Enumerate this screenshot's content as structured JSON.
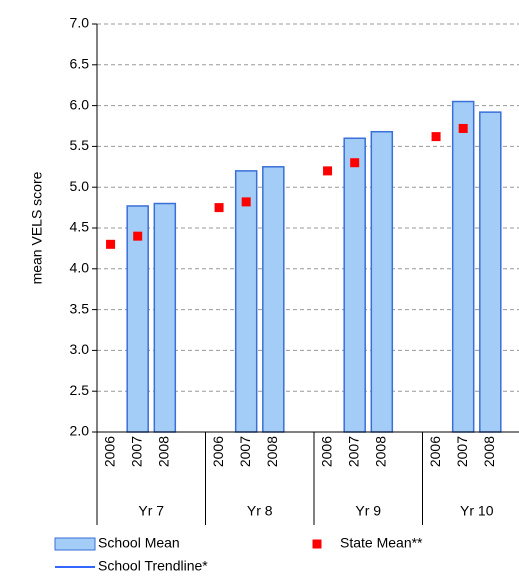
{
  "chart_data": {
    "type": "bar",
    "y_label": "mean VELS score",
    "categories": [
      "2006",
      "2007",
      "2008",
      "2006",
      "2007",
      "2008",
      "2006",
      "2007",
      "2008",
      "2006",
      "2007",
      "2008"
    ],
    "groups": [
      "Yr 7",
      "Yr 8",
      "Yr 9",
      "Yr 10"
    ],
    "series": [
      {
        "name": "School Mean",
        "kind": "bar",
        "color": "#a3cdf7",
        "edge": "#3a6fd8",
        "values": [
          null,
          4.77,
          4.8,
          null,
          5.2,
          5.25,
          null,
          5.6,
          5.68,
          null,
          6.05,
          5.92
        ]
      },
      {
        "name": "State Mean**",
        "kind": "marker",
        "color": "#ff0000",
        "values": [
          4.3,
          4.4,
          null,
          4.75,
          4.82,
          null,
          5.2,
          5.3,
          null,
          5.62,
          5.72,
          null
        ]
      },
      {
        "name": "School Trendline*",
        "kind": "line",
        "color": "#3366ff",
        "values": [
          null,
          null,
          null,
          null,
          null,
          null,
          null,
          null,
          null,
          null,
          null,
          null
        ]
      }
    ],
    "ylim": [
      2.0,
      7.0
    ],
    "yticks": [
      {
        "value": 2,
        "label": "2.0"
      },
      {
        "value": 2.5,
        "label": "2.5"
      },
      {
        "value": 3,
        "label": "3.0"
      },
      {
        "value": 3.5,
        "label": "3.5"
      },
      {
        "value": 4,
        "label": "4.0"
      },
      {
        "value": 4.5,
        "label": "4.5"
      },
      {
        "value": 5,
        "label": "5.0"
      },
      {
        "value": 5.5,
        "label": "5.5"
      },
      {
        "value": 6,
        "label": "6.0"
      },
      {
        "value": 6.5,
        "label": "6.5"
      },
      {
        "value": 7,
        "label": "7.0"
      }
    ],
    "grid": true
  }
}
